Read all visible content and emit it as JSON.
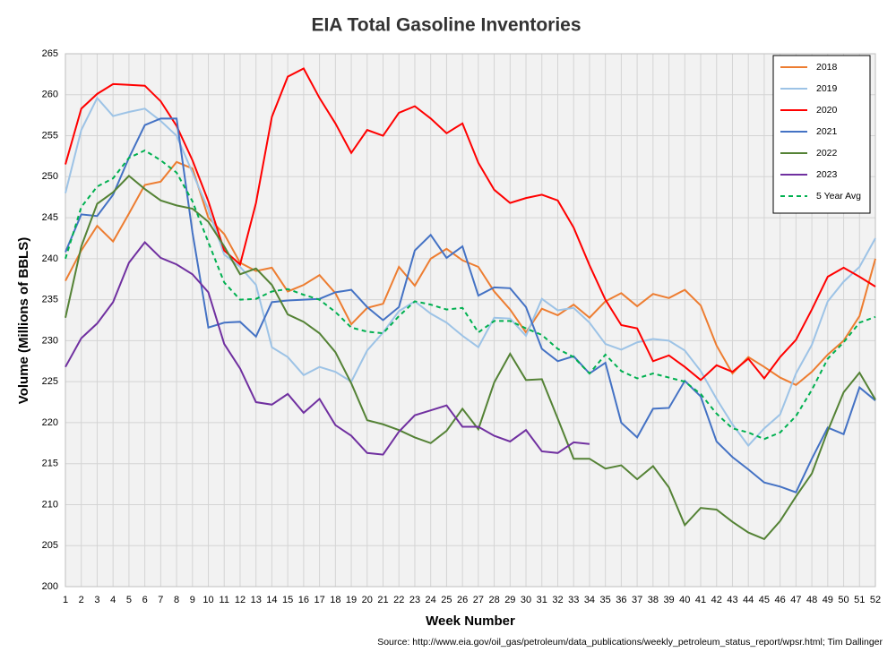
{
  "chart_data": {
    "type": "line",
    "title": "EIA Total Gasoline Inventories",
    "x_label": "Week Number",
    "y_label": "Volume (Millions of BBLS)",
    "source": "Source: http://www.eia.gov/oil_gas/petroleum/data_publications/weekly_petroleum_status_report/wpsr.html; Tim Dallinger",
    "x": [
      1,
      2,
      3,
      4,
      5,
      6,
      7,
      8,
      9,
      10,
      11,
      12,
      13,
      14,
      15,
      16,
      17,
      18,
      19,
      20,
      21,
      22,
      23,
      24,
      25,
      26,
      27,
      28,
      29,
      30,
      31,
      32,
      33,
      34,
      35,
      36,
      37,
      38,
      39,
      40,
      41,
      42,
      43,
      44,
      45,
      46,
      47,
      48,
      49,
      50,
      51,
      52
    ],
    "xlim": [
      1,
      52
    ],
    "xticks": [
      1,
      2,
      3,
      4,
      5,
      6,
      7,
      8,
      9,
      10,
      11,
      12,
      13,
      14,
      15,
      16,
      17,
      18,
      19,
      20,
      21,
      22,
      23,
      24,
      25,
      26,
      27,
      28,
      29,
      30,
      31,
      32,
      33,
      34,
      35,
      36,
      37,
      38,
      39,
      40,
      41,
      42,
      43,
      44,
      45,
      46,
      47,
      48,
      49,
      50,
      51,
      52
    ],
    "ylim": [
      200,
      265
    ],
    "yticks": [
      200,
      205,
      210,
      215,
      220,
      225,
      230,
      235,
      240,
      245,
      250,
      255,
      260,
      265
    ],
    "grid": true,
    "legend": "top-right",
    "series": [
      {
        "name": "2018",
        "color": "#ed7d31",
        "style": "solid",
        "values": [
          237.3,
          241,
          244,
          242.1,
          245.5,
          249,
          249.4,
          251.8,
          251,
          245,
          243,
          239.5,
          238.5,
          238.9,
          236,
          236.8,
          238,
          235.8,
          232,
          234,
          234.5,
          239,
          236.7,
          240,
          241.2,
          239.8,
          239,
          236,
          233.8,
          231,
          233.9,
          233.1,
          234.4,
          232.8,
          234.8,
          235.8,
          234.2,
          235.7,
          235.2,
          236.2,
          234.3,
          229.4,
          226,
          228,
          226.8,
          225.5,
          224.6,
          226.2,
          228.3,
          230,
          233,
          240
        ]
      },
      {
        "name": "2019",
        "color": "#9dc3e6",
        "style": "solid",
        "values": [
          248,
          255.7,
          259.6,
          257.4,
          257.9,
          258.3,
          256.8,
          255,
          250.5,
          246,
          240.5,
          239,
          236.8,
          229.2,
          228,
          225.8,
          226.8,
          226.2,
          225,
          228.8,
          231,
          233.6,
          234.8,
          233.3,
          232.2,
          230.6,
          229.2,
          232.8,
          232.7,
          230.6,
          235.1,
          233.7,
          234,
          232.2,
          229.6,
          228.9,
          229.8,
          230.2,
          230,
          228.8,
          226.3,
          222.9,
          219.8,
          217.2,
          219.3,
          221,
          226,
          229.5,
          234.8,
          237.2,
          239,
          242.5
        ]
      },
      {
        "name": "2020",
        "color": "#ff0000",
        "style": "solid",
        "values": [
          251.5,
          258.3,
          260.1,
          261.3,
          261.2,
          261.1,
          259.2,
          256.2,
          252,
          247,
          241,
          239.3,
          246.8,
          257.3,
          262.2,
          263.2,
          259.6,
          256.5,
          252.9,
          255.7,
          255,
          257.8,
          258.6,
          257.1,
          255.3,
          256.5,
          251.7,
          248.4,
          246.8,
          247.4,
          247.8,
          247.1,
          243.8,
          239.2,
          235,
          231.9,
          231.5,
          227.5,
          228.2,
          226.8,
          225.2,
          227,
          226.2,
          227.8,
          225.4,
          228,
          230.1,
          233.8,
          237.8,
          238.9,
          237.8,
          236.6
        ]
      },
      {
        "name": "2021",
        "color": "#4472c4",
        "style": "solid",
        "values": [
          240.8,
          245.4,
          245.2,
          247.8,
          252.3,
          256.3,
          257.1,
          257.1,
          243.2,
          231.6,
          232.2,
          232.3,
          230.5,
          234.7,
          234.9,
          235,
          235.1,
          235.9,
          236.2,
          234.1,
          232.5,
          234.1,
          241,
          242.9,
          240.1,
          241.5,
          235.5,
          236.5,
          236.4,
          234.1,
          229,
          227.5,
          228.1,
          226,
          227.3,
          220,
          218.2,
          221.7,
          221.8,
          225.1,
          223.2,
          217.7,
          215.8,
          214.3,
          212.7,
          212.2,
          211.5,
          215.6,
          219.4,
          218.6,
          224.3,
          222.7
        ]
      },
      {
        "name": "2022",
        "color": "#548235",
        "style": "solid",
        "values": [
          232.8,
          241.5,
          246.7,
          248.1,
          250.1,
          248.5,
          247.1,
          246.5,
          246.1,
          244.5,
          241.5,
          238.1,
          238.8,
          236.8,
          233.2,
          232.3,
          230.9,
          228.6,
          224.8,
          220.3,
          219.8,
          219.1,
          218.2,
          217.5,
          219,
          221.7,
          219.2,
          224.9,
          228.4,
          225.2,
          225.3,
          220.5,
          215.6,
          215.6,
          214.4,
          214.8,
          213.1,
          214.7,
          212.1,
          207.5,
          209.6,
          209.4,
          207.9,
          206.6,
          205.8,
          208,
          211,
          213.8,
          219,
          223.7,
          226.1,
          222.8
        ]
      },
      {
        "name": "2023",
        "color": "#7030a0",
        "style": "solid",
        "values": [
          226.8,
          230.3,
          232.1,
          234.7,
          239.5,
          242,
          240.1,
          239.3,
          238.1,
          235.9,
          229.6,
          226.6,
          222.5,
          222.2,
          223.5,
          221.2,
          222.9,
          219.7,
          218.4,
          216.3,
          216.1,
          218.9,
          220.9,
          221.5,
          222.1,
          219.5,
          219.5,
          218.4,
          217.7,
          219.1,
          216.5,
          216.3,
          217.6,
          217.4,
          null,
          null,
          null,
          null,
          null,
          null,
          null,
          null,
          null,
          null,
          null,
          null,
          null,
          null,
          null,
          null,
          null,
          null
        ]
      },
      {
        "name": "5 Year Avg",
        "color": "#00b050",
        "style": "dashed",
        "values": [
          240,
          246.3,
          248.8,
          249.8,
          252.3,
          253.2,
          252,
          250.5,
          247,
          242,
          237.1,
          235,
          235.1,
          236,
          236.3,
          235.6,
          235,
          233.5,
          231.6,
          231.1,
          230.9,
          233,
          234.8,
          234.4,
          233.8,
          234,
          231,
          232.4,
          232.4,
          231.5,
          230.7,
          229,
          228,
          226,
          228.3,
          226.3,
          225.4,
          226,
          225.5,
          225,
          223.5,
          221.1,
          219.3,
          218.8,
          218,
          218.8,
          220.8,
          224,
          227.8,
          229.8,
          232.2,
          232.9
        ]
      }
    ]
  }
}
